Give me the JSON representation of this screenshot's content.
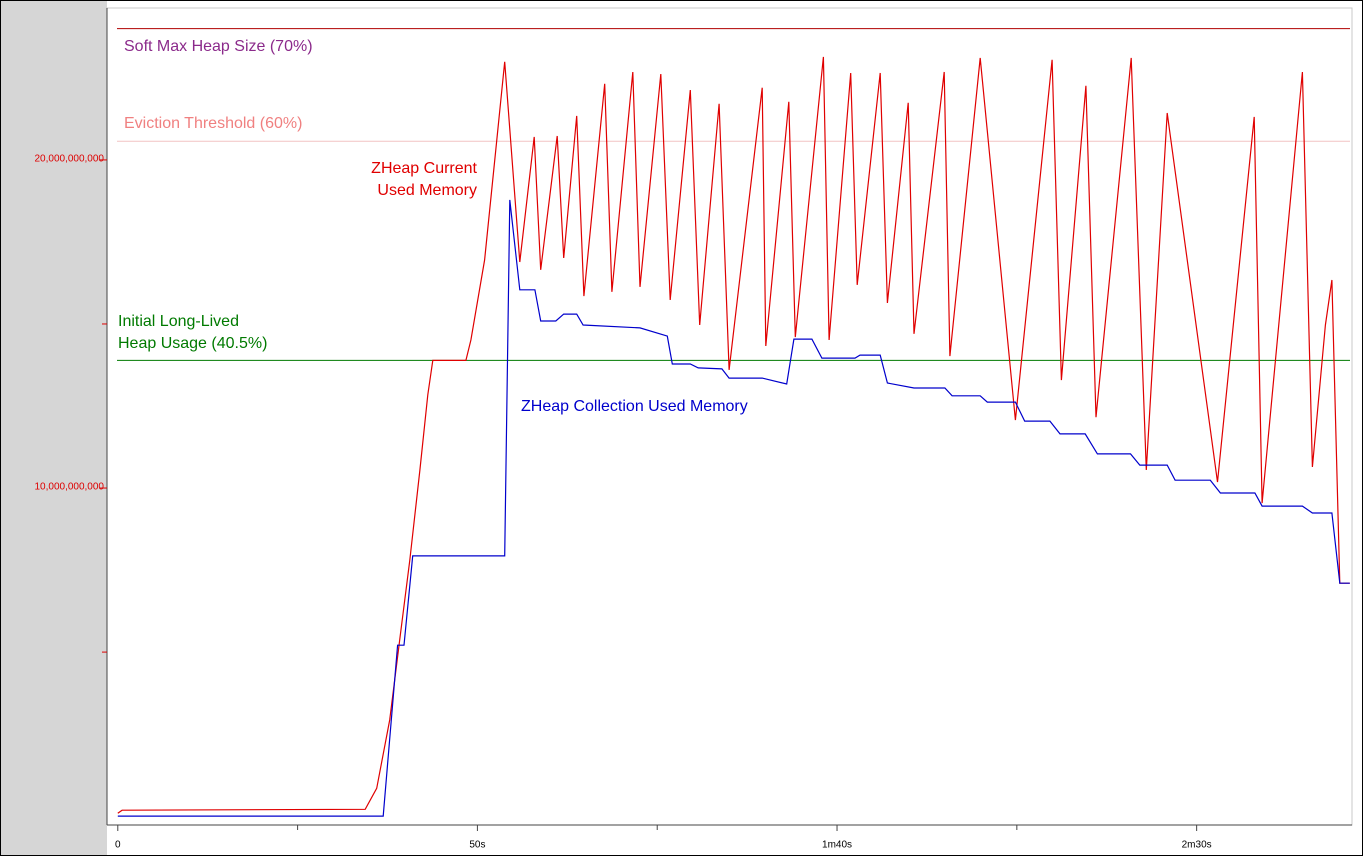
{
  "chart_data": {
    "type": "line",
    "xlim": [
      -1.5,
      171.6
    ],
    "ylim": [
      -270000000.0,
      24630000000.0
    ],
    "xticks": [
      0,
      {
        "value": 50,
        "label": "50s"
      },
      {
        "value": 100,
        "label": "1m40s"
      },
      {
        "value": 150,
        "label": "2m30s"
      }
    ],
    "minor_xticks": [
      25,
      75,
      125
    ],
    "yticks": [
      {
        "value": 10000000000.0,
        "label": "10,000,000,000"
      },
      {
        "value": 20000000000.0,
        "label": "20,000,000,000"
      }
    ],
    "minor_yticks": [
      5000000000.0,
      15000000000.0
    ],
    "ytick_color": "#dd0000",
    "reference_lines": [
      {
        "label": [
          "Soft Max Heap Size (70%)"
        ],
        "value": 24000000000.0,
        "color": "#b00000",
        "label_color": "#8b2a8b"
      },
      {
        "label": [
          "Eviction Threshold (60%)"
        ],
        "value": 20570000000.0,
        "color": "#f2c4c4",
        "label_color": "#f08080"
      },
      {
        "label": [
          "Initial Long-Lived",
          "Heap Usage (40.5%)"
        ],
        "value": 13890000000.0,
        "color": "#007a00",
        "label_color": "#007a00"
      }
    ],
    "series": [
      {
        "label": [
          "ZHeap Current",
          "Used Memory"
        ],
        "color": "#e00000",
        "x": [
          0,
          0.6,
          34.4,
          36.0,
          37.8,
          39.2,
          40.6,
          42.0,
          43.1,
          43.8,
          48.4,
          49.1,
          51.0,
          52.7,
          53.8,
          55.9,
          57.9,
          58.8,
          61.1,
          62.0,
          63.8,
          64.8,
          67.7,
          68.7,
          71.6,
          72.6,
          75.5,
          76.8,
          79.6,
          80.9,
          83.6,
          85.0,
          89.6,
          90.1,
          93.3,
          94.2,
          98.1,
          98.9,
          101.9,
          102.8,
          106.0,
          107.0,
          109.9,
          110.7,
          114.9,
          115.7,
          119.9,
          124.8,
          129.9,
          131.2,
          134.6,
          136.0,
          140.9,
          143.0,
          145.9,
          152.9,
          158.0,
          159.1,
          164.7,
          166.1,
          167.9,
          168.8,
          169.9,
          171.3
        ],
        "values": [
          90000000.0,
          180000000.0,
          210000000.0,
          850000000.0,
          2930000000.0,
          5370000000.0,
          7800000000.0,
          10550000000.0,
          12840000000.0,
          13890000000.0,
          13890000000.0,
          14510000000.0,
          16950000000.0,
          20610000000.0,
          22990000000.0,
          16890000000.0,
          20700000000.0,
          16650000000.0,
          20730000000.0,
          17010000000.0,
          21340000000.0,
          15850000000.0,
          22320000000.0,
          15980000000.0,
          22680000000.0,
          16130000000.0,
          22620000000.0,
          15730000000.0,
          22130000000.0,
          14970000000.0,
          21710000000.0,
          13600000000.0,
          22200000000.0,
          14330000000.0,
          21770000000.0,
          14600000000.0,
          23140000000.0,
          14510000000.0,
          22650000000.0,
          16190000000.0,
          22650000000.0,
          15640000000.0,
          21740000000.0,
          14700000000.0,
          22680000000.0,
          14020000000.0,
          23110000000.0,
          12070000000.0,
          23050000000.0,
          13290000000.0,
          22260000000.0,
          12160000000.0,
          23110000000.0,
          10550000000.0,
          21430000000.0,
          10180000000.0,
          21310000000.0,
          9540000000.0,
          22680000000.0,
          10640000000.0,
          14970000000.0,
          16340000000.0,
          7100000000.0,
          7100000000.0
        ]
      },
      {
        "label": [
          "ZHeap Collection Used Memory"
        ],
        "color": "#0000cc",
        "x": [
          0,
          36.9,
          38.9,
          39.8,
          41.0,
          53.8,
          54.5,
          55.9,
          58.0,
          58.8,
          60.9,
          62.0,
          63.8,
          64.7,
          72.6,
          76.4,
          77.1,
          79.6,
          80.7,
          84.0,
          85.0,
          89.6,
          93.0,
          94.0,
          96.5,
          97.9,
          102.5,
          103.2,
          106.0,
          107.0,
          110.7,
          115.0,
          116.0,
          119.9,
          120.9,
          124.8,
          126.1,
          129.6,
          131.0,
          134.5,
          136.2,
          140.8,
          142.1,
          145.9,
          147.0,
          151.9,
          153.3,
          158.1,
          159.1,
          164.7,
          166.1,
          168.8,
          169.9,
          171.3
        ],
        "values": [
          0,
          0,
          5210000000.0,
          5210000000.0,
          7930000000.0,
          7930000000.0,
          18780000000.0,
          16040000000.0,
          16040000000.0,
          15090000000.0,
          15090000000.0,
          15300000000.0,
          15300000000.0,
          14970000000.0,
          14880000000.0,
          14630000000.0,
          13780000000.0,
          13780000000.0,
          13660000000.0,
          13630000000.0,
          13350000000.0,
          13350000000.0,
          13170000000.0,
          14540000000.0,
          14540000000.0,
          13960000000.0,
          13960000000.0,
          14050000000.0,
          14050000000.0,
          13200000000.0,
          13050000000.0,
          13050000000.0,
          12810000000.0,
          12810000000.0,
          12620000000.0,
          12620000000.0,
          12040000000.0,
          12040000000.0,
          11650000000.0,
          11650000000.0,
          11040000000.0,
          11040000000.0,
          10700000000.0,
          10700000000.0,
          10240000000.0,
          10240000000.0,
          9850000000.0,
          9850000000.0,
          9450000000.0,
          9450000000.0,
          9240000000.0,
          9240000000.0,
          7100000000.0,
          7100000000.0
        ]
      }
    ]
  }
}
